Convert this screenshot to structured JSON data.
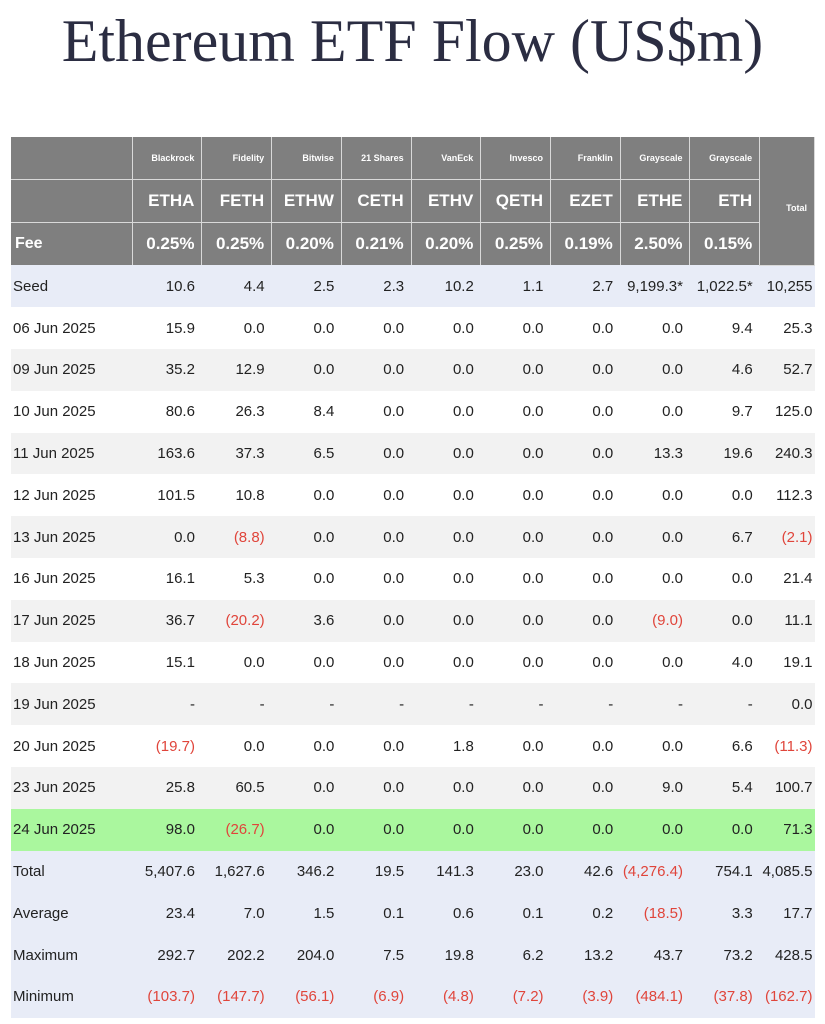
{
  "title": "Ethereum ETF Flow (US$m)",
  "header": {
    "issuers": [
      "Blackrock",
      "Fidelity",
      "Bitwise",
      "21 Shares",
      "VanEck",
      "Invesco",
      "Franklin",
      "Grayscale",
      "Grayscale"
    ],
    "tickers": [
      "ETHA",
      "FETH",
      "ETHW",
      "CETH",
      "ETHV",
      "QETH",
      "EZET",
      "ETHE",
      "ETH"
    ],
    "fee_label": "Fee",
    "fees": [
      "0.25%",
      "0.25%",
      "0.20%",
      "0.21%",
      "0.20%",
      "0.25%",
      "0.19%",
      "2.50%",
      "0.15%"
    ],
    "total_label": "Total"
  },
  "rows": [
    {
      "label": "Seed",
      "style": "seed",
      "values": [
        "10.6",
        "4.4",
        "2.5",
        "2.3",
        "10.2",
        "1.1",
        "2.7",
        "9,199.3*",
        "1,022.5*",
        "10,255"
      ]
    },
    {
      "label": "06 Jun 2025",
      "style": "white",
      "values": [
        "15.9",
        "0.0",
        "0.0",
        "0.0",
        "0.0",
        "0.0",
        "0.0",
        "0.0",
        "9.4",
        "25.3"
      ]
    },
    {
      "label": "09 Jun 2025",
      "style": "grey",
      "values": [
        "35.2",
        "12.9",
        "0.0",
        "0.0",
        "0.0",
        "0.0",
        "0.0",
        "0.0",
        "4.6",
        "52.7"
      ]
    },
    {
      "label": "10 Jun 2025",
      "style": "white",
      "values": [
        "80.6",
        "26.3",
        "8.4",
        "0.0",
        "0.0",
        "0.0",
        "0.0",
        "0.0",
        "9.7",
        "125.0"
      ]
    },
    {
      "label": "11 Jun 2025",
      "style": "grey",
      "values": [
        "163.6",
        "37.3",
        "6.5",
        "0.0",
        "0.0",
        "0.0",
        "0.0",
        "13.3",
        "19.6",
        "240.3"
      ]
    },
    {
      "label": "12 Jun 2025",
      "style": "white",
      "values": [
        "101.5",
        "10.8",
        "0.0",
        "0.0",
        "0.0",
        "0.0",
        "0.0",
        "0.0",
        "0.0",
        "112.3"
      ]
    },
    {
      "label": "13 Jun 2025",
      "style": "grey",
      "values": [
        "0.0",
        "(8.8)",
        "0.0",
        "0.0",
        "0.0",
        "0.0",
        "0.0",
        "0.0",
        "6.7",
        "(2.1)"
      ]
    },
    {
      "label": "16 Jun 2025",
      "style": "white",
      "values": [
        "16.1",
        "5.3",
        "0.0",
        "0.0",
        "0.0",
        "0.0",
        "0.0",
        "0.0",
        "0.0",
        "21.4"
      ]
    },
    {
      "label": "17 Jun 2025",
      "style": "grey",
      "values": [
        "36.7",
        "(20.2)",
        "3.6",
        "0.0",
        "0.0",
        "0.0",
        "0.0",
        "(9.0)",
        "0.0",
        "11.1"
      ]
    },
    {
      "label": "18 Jun 2025",
      "style": "white",
      "values": [
        "15.1",
        "0.0",
        "0.0",
        "0.0",
        "0.0",
        "0.0",
        "0.0",
        "0.0",
        "4.0",
        "19.1"
      ]
    },
    {
      "label": "19 Jun 2025",
      "style": "grey",
      "values": [
        "-",
        "-",
        "-",
        "-",
        "-",
        "-",
        "-",
        "-",
        "-",
        "0.0"
      ]
    },
    {
      "label": "20 Jun 2025",
      "style": "white",
      "values": [
        "(19.7)",
        "0.0",
        "0.0",
        "0.0",
        "1.8",
        "0.0",
        "0.0",
        "0.0",
        "6.6",
        "(11.3)"
      ]
    },
    {
      "label": "23 Jun 2025",
      "style": "grey",
      "values": [
        "25.8",
        "60.5",
        "0.0",
        "0.0",
        "0.0",
        "0.0",
        "0.0",
        "9.0",
        "5.4",
        "100.7"
      ]
    },
    {
      "label": "24 Jun 2025",
      "style": "latest",
      "values": [
        "98.0",
        "(26.7)",
        "0.0",
        "0.0",
        "0.0",
        "0.0",
        "0.0",
        "0.0",
        "0.0",
        "71.3"
      ]
    },
    {
      "label": "Total",
      "style": "summary",
      "values": [
        "5,407.6",
        "1,627.6",
        "346.2",
        "19.5",
        "141.3",
        "23.0",
        "42.6",
        "(4,276.4)",
        "754.1",
        "4,085.5"
      ]
    },
    {
      "label": "Average",
      "style": "summary",
      "values": [
        "23.4",
        "7.0",
        "1.5",
        "0.1",
        "0.6",
        "0.1",
        "0.2",
        "(18.5)",
        "3.3",
        "17.7"
      ]
    },
    {
      "label": "Maximum",
      "style": "summary",
      "values": [
        "292.7",
        "202.2",
        "204.0",
        "7.5",
        "19.8",
        "6.2",
        "13.2",
        "43.7",
        "73.2",
        "428.5"
      ]
    },
    {
      "label": "Minimum",
      "style": "summary",
      "values": [
        "(103.7)",
        "(147.7)",
        "(56.1)",
        "(6.9)",
        "(4.8)",
        "(7.2)",
        "(3.9)",
        "(484.1)",
        "(37.8)",
        "(162.7)"
      ]
    }
  ],
  "colors": {
    "header_bg": "#7f7f7f",
    "seed_summary_bg": "#e8ecf7",
    "latest_row_bg": "#aaf79e",
    "alt_row_bg": "#f2f2f2",
    "negative_text": "#e0453b",
    "title_text": "#2b2d42"
  }
}
